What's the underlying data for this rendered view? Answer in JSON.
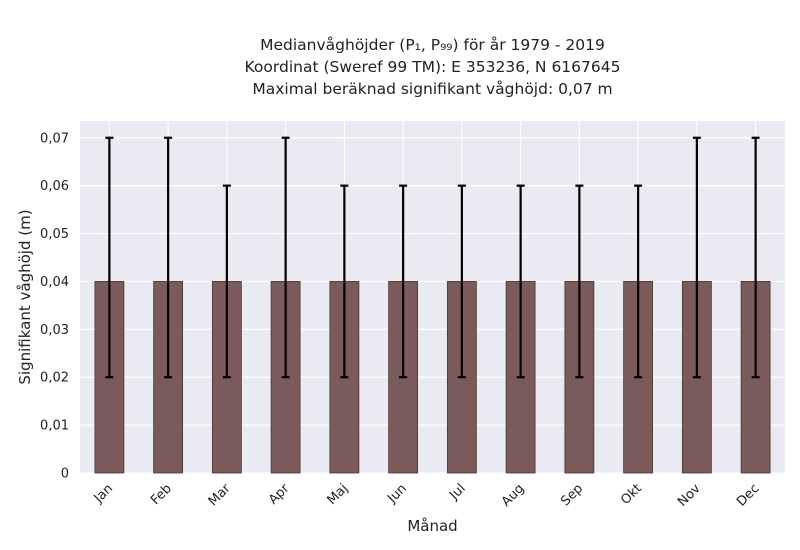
{
  "chart_data": {
    "type": "bar",
    "title_lines": [
      "Medianvåghöjder (P₁, P₉₉) för år 1979 - 2019",
      "Koordinat (Sweref 99 TM): E 353236, N 6167645",
      "Maximal beräknad signifikant våghöjd: 0,07 m"
    ],
    "xlabel": "Månad",
    "ylabel": "Signifikant våghöjd (m)",
    "categories": [
      "Jan",
      "Feb",
      "Mar",
      "Apr",
      "Maj",
      "Jun",
      "Jul",
      "Aug",
      "Sep",
      "Okt",
      "Nov",
      "Dec"
    ],
    "values": [
      0.04,
      0.04,
      0.04,
      0.04,
      0.04,
      0.04,
      0.04,
      0.04,
      0.04,
      0.04,
      0.04,
      0.04
    ],
    "p1": [
      0.02,
      0.02,
      0.02,
      0.02,
      0.02,
      0.02,
      0.02,
      0.02,
      0.02,
      0.02,
      0.02,
      0.02
    ],
    "p99": [
      0.07,
      0.07,
      0.06,
      0.07,
      0.06,
      0.06,
      0.06,
      0.06,
      0.06,
      0.06,
      0.07,
      0.07
    ],
    "ylim": [
      0,
      0.0735
    ],
    "yticks": [
      0,
      0.01,
      0.02,
      0.03,
      0.04,
      0.05,
      0.06,
      0.07
    ],
    "ytick_labels": [
      "0",
      "0,01",
      "0,02",
      "0,03",
      "0,04",
      "0,05",
      "0,06",
      "0,07"
    ],
    "grid": true,
    "colors": {
      "bar": "#7b5a5a",
      "bar_edge": "#4a3535",
      "error": "#000000",
      "background": "#eaeaf2",
      "grid": "#ffffff"
    }
  }
}
